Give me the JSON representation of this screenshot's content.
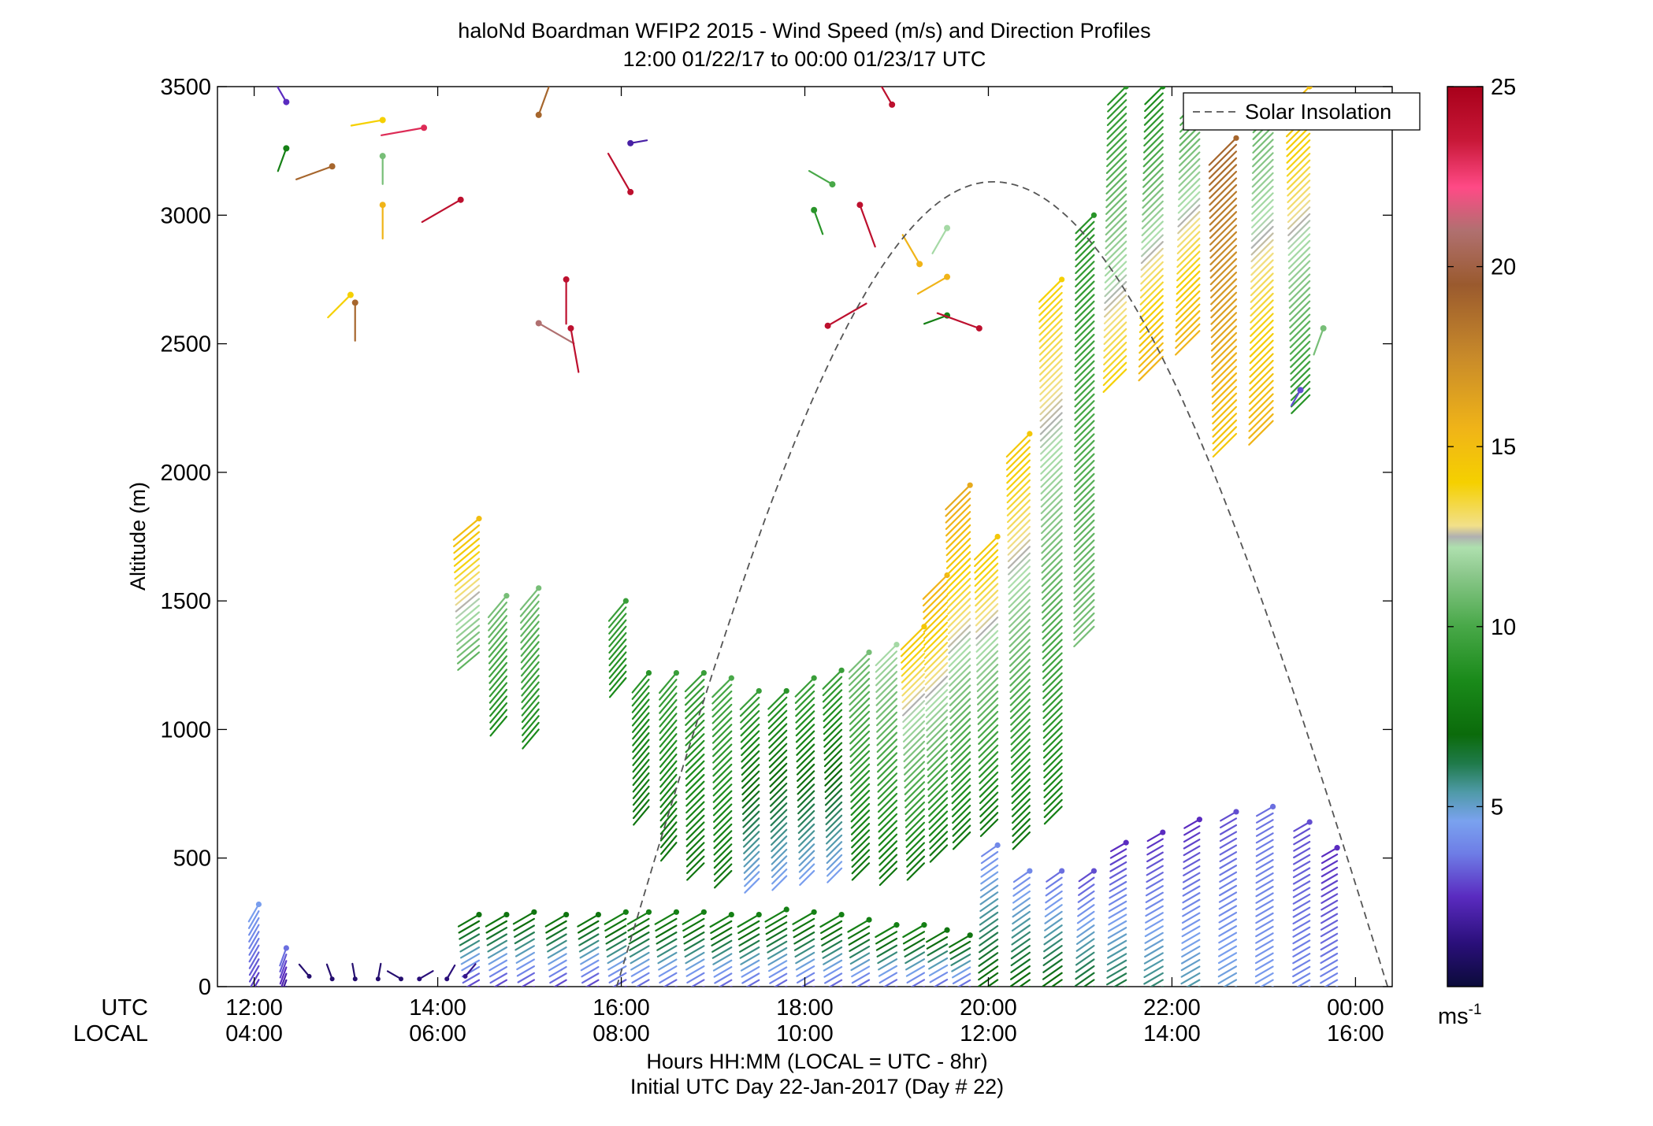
{
  "chart_data": {
    "type": "scatter",
    "title": "haloNd Boardman WFIP2 2015 - Wind Speed (m/s) and Direction Profiles",
    "subtitle": "12:00 01/22/17 to 00:00 01/23/17  UTC",
    "ylabel": "Altitude (m)",
    "xlabel": "Hours HH:MM  (LOCAL = UTC - 8hr)",
    "xlabel2": "Initial UTC Day 22-Jan-2017 (Day # 22)",
    "xrow_label_utc": "UTC",
    "xrow_label_local": "LOCAL",
    "xlim_hours": [
      11.6,
      24.4
    ],
    "ylim": [
      0,
      3500
    ],
    "y_ticks": [
      "0",
      "500",
      "1000",
      "1500",
      "2000",
      "2500",
      "3000",
      "3500"
    ],
    "y_tick_values": [
      0,
      500,
      1000,
      1500,
      2000,
      2500,
      3000,
      3500
    ],
    "x_tick_hours": [
      12,
      14,
      16,
      18,
      20,
      22,
      24
    ],
    "x_ticks_utc": [
      "12:00",
      "14:00",
      "16:00",
      "18:00",
      "20:00",
      "22:00",
      "00:00"
    ],
    "x_ticks_local": [
      "04:00",
      "06:00",
      "08:00",
      "10:00",
      "12:00",
      "14:00",
      "16:00"
    ],
    "legend": {
      "entry": "Solar Insolation",
      "placement": "top-right",
      "style": "dashed gray line"
    },
    "solar_insolation": {
      "start_hour": 15.95,
      "peak_hour": 20.05,
      "end_hour": 24.35,
      "peak_altitude": 3130
    },
    "colorbar": {
      "unit": "ms-1",
      "ticks": [
        "5",
        "10",
        "15",
        "20",
        "25"
      ],
      "tick_values": [
        5,
        10,
        15,
        20,
        25
      ],
      "range": [
        0,
        25
      ],
      "stops": [
        {
          "v": 0,
          "c": "#0b0b3a"
        },
        {
          "v": 1.2,
          "c": "#2a0f7a"
        },
        {
          "v": 2.5,
          "c": "#5a2bc0"
        },
        {
          "v": 3.7,
          "c": "#6e7de6"
        },
        {
          "v": 4.6,
          "c": "#7aa2ef"
        },
        {
          "v": 5.4,
          "c": "#4f9aa8"
        },
        {
          "v": 6.2,
          "c": "#1f7a4a"
        },
        {
          "v": 7.0,
          "c": "#0b6b0b"
        },
        {
          "v": 8.5,
          "c": "#1a8a1a"
        },
        {
          "v": 10.0,
          "c": "#48a848"
        },
        {
          "v": 11.5,
          "c": "#8ec98e"
        },
        {
          "v": 12.2,
          "c": "#aee0ae"
        },
        {
          "v": 12.5,
          "c": "#b0b0b0"
        },
        {
          "v": 12.8,
          "c": "#f2e08a"
        },
        {
          "v": 14.0,
          "c": "#f5d000"
        },
        {
          "v": 15.5,
          "c": "#f0b418"
        },
        {
          "v": 17.5,
          "c": "#c88a2a"
        },
        {
          "v": 19.5,
          "c": "#9a5a2e"
        },
        {
          "v": 21.0,
          "c": "#b07070"
        },
        {
          "v": 22.2,
          "c": "#ff4a86"
        },
        {
          "v": 23.5,
          "c": "#c81838"
        },
        {
          "v": 25.0,
          "c": "#a8001a"
        }
      ]
    },
    "profiles": [
      {
        "t": 12.05,
        "bottom": 0,
        "top": 320,
        "speed_bottom": 2.5,
        "speed_top": 4.5,
        "dir": 210
      },
      {
        "t": 12.35,
        "bottom": 0,
        "top": 150,
        "speed_bottom": 1.5,
        "speed_top": 3.5,
        "dir": 200
      },
      {
        "t": 14.45,
        "bottom": 0,
        "top": 280,
        "speed_bottom": 2.5,
        "speed_top": 7.5,
        "dir": 240
      },
      {
        "t": 14.45,
        "bottom": 1300,
        "top": 1820,
        "speed_bottom": 10.5,
        "speed_top": 15.0,
        "dir": 230
      },
      {
        "t": 14.75,
        "bottom": 0,
        "top": 280,
        "speed_bottom": 2.5,
        "speed_top": 7.5,
        "dir": 240
      },
      {
        "t": 14.75,
        "bottom": 1050,
        "top": 1520,
        "speed_bottom": 8.5,
        "speed_top": 11.0,
        "dir": 220
      },
      {
        "t": 15.05,
        "bottom": 0,
        "top": 290,
        "speed_bottom": 2.5,
        "speed_top": 7.5,
        "dir": 240
      },
      {
        "t": 15.1,
        "bottom": 1000,
        "top": 1550,
        "speed_bottom": 8.5,
        "speed_top": 11.0,
        "dir": 220
      },
      {
        "t": 15.4,
        "bottom": 0,
        "top": 280,
        "speed_bottom": 2.5,
        "speed_top": 7.5,
        "dir": 240
      },
      {
        "t": 15.75,
        "bottom": 0,
        "top": 280,
        "speed_bottom": 2.5,
        "speed_top": 7.5,
        "dir": 240
      },
      {
        "t": 16.05,
        "bottom": 0,
        "top": 290,
        "speed_bottom": 2.8,
        "speed_top": 8.0,
        "dir": 240
      },
      {
        "t": 16.05,
        "bottom": 1200,
        "top": 1500,
        "speed_bottom": 8.5,
        "speed_top": 9.5,
        "dir": 220
      },
      {
        "t": 16.3,
        "bottom": 0,
        "top": 290,
        "speed_bottom": 3.0,
        "speed_top": 8.0,
        "dir": 240
      },
      {
        "t": 16.3,
        "bottom": 700,
        "top": 1220,
        "speed_bottom": 7.5,
        "speed_top": 9.0,
        "dir": 220
      },
      {
        "t": 16.6,
        "bottom": 0,
        "top": 290,
        "speed_bottom": 3.0,
        "speed_top": 8.0,
        "dir": 240
      },
      {
        "t": 16.6,
        "bottom": 560,
        "top": 1220,
        "speed_bottom": 7.5,
        "speed_top": 9.5,
        "dir": 220
      },
      {
        "t": 16.9,
        "bottom": 0,
        "top": 290,
        "speed_bottom": 3.0,
        "speed_top": 8.0,
        "dir": 240
      },
      {
        "t": 16.9,
        "bottom": 480,
        "top": 1220,
        "speed_bottom": 7.5,
        "speed_top": 9.5,
        "dir": 225
      },
      {
        "t": 17.2,
        "bottom": 0,
        "top": 280,
        "speed_bottom": 3.0,
        "speed_top": 8.0,
        "dir": 240
      },
      {
        "t": 17.2,
        "bottom": 450,
        "top": 1200,
        "speed_bottom": 7.5,
        "speed_top": 10.0,
        "dir": 225
      },
      {
        "t": 17.5,
        "bottom": 0,
        "top": 280,
        "speed_bottom": 3.0,
        "speed_top": 8.0,
        "dir": 240
      },
      {
        "t": 17.5,
        "bottom": 420,
        "top": 1150,
        "speed_bottom": 4.5,
        "speed_top": 9.5,
        "dir": 225
      },
      {
        "t": 17.8,
        "bottom": 0,
        "top": 300,
        "speed_bottom": 3.0,
        "speed_top": 8.0,
        "dir": 240
      },
      {
        "t": 17.8,
        "bottom": 430,
        "top": 1150,
        "speed_bottom": 4.5,
        "speed_top": 9.0,
        "dir": 225
      },
      {
        "t": 18.1,
        "bottom": 0,
        "top": 290,
        "speed_bottom": 3.0,
        "speed_top": 8.0,
        "dir": 240
      },
      {
        "t": 18.1,
        "bottom": 450,
        "top": 1200,
        "speed_bottom": 4.5,
        "speed_top": 9.5,
        "dir": 225
      },
      {
        "t": 18.4,
        "bottom": 0,
        "top": 280,
        "speed_bottom": 3.0,
        "speed_top": 8.0,
        "dir": 240
      },
      {
        "t": 18.4,
        "bottom": 460,
        "top": 1230,
        "speed_bottom": 4.5,
        "speed_top": 9.5,
        "dir": 225
      },
      {
        "t": 18.7,
        "bottom": 0,
        "top": 260,
        "speed_bottom": 3.0,
        "speed_top": 8.0,
        "dir": 240
      },
      {
        "t": 18.7,
        "bottom": 480,
        "top": 1300,
        "speed_bottom": 7.5,
        "speed_top": 11.0,
        "dir": 225
      },
      {
        "t": 19.0,
        "bottom": 0,
        "top": 240,
        "speed_bottom": 3.0,
        "speed_top": 8.0,
        "dir": 240
      },
      {
        "t": 19.0,
        "bottom": 460,
        "top": 1330,
        "speed_bottom": 7.5,
        "speed_top": 12.0,
        "dir": 225
      },
      {
        "t": 19.3,
        "bottom": 0,
        "top": 240,
        "speed_bottom": 3.0,
        "speed_top": 8.0,
        "dir": 240
      },
      {
        "t": 19.3,
        "bottom": 480,
        "top": 1400,
        "speed_bottom": 7.5,
        "speed_top": 14.5,
        "dir": 225
      },
      {
        "t": 19.55,
        "bottom": 0,
        "top": 220,
        "speed_bottom": 3.0,
        "speed_top": 7.5,
        "dir": 240
      },
      {
        "t": 19.55,
        "bottom": 550,
        "top": 1600,
        "speed_bottom": 7.5,
        "speed_top": 15.5,
        "dir": 225
      },
      {
        "t": 19.8,
        "bottom": 0,
        "top": 200,
        "speed_bottom": 3.0,
        "speed_top": 7.5,
        "dir": 240
      },
      {
        "t": 19.8,
        "bottom": 600,
        "top": 1950,
        "speed_bottom": 7.5,
        "speed_top": 16.0,
        "dir": 225
      },
      {
        "t": 20.1,
        "bottom": 0,
        "top": 550,
        "speed_bottom": 7.5,
        "speed_top": 4.0,
        "dir": 235
      },
      {
        "t": 20.1,
        "bottom": 650,
        "top": 1750,
        "speed_bottom": 7.5,
        "speed_top": 14.5,
        "dir": 225
      },
      {
        "t": 20.45,
        "bottom": 0,
        "top": 450,
        "speed_bottom": 7.5,
        "speed_top": 4.0,
        "dir": 235
      },
      {
        "t": 20.45,
        "bottom": 600,
        "top": 2150,
        "speed_bottom": 7.5,
        "speed_top": 14.5,
        "dir": 225
      },
      {
        "t": 20.8,
        "bottom": 0,
        "top": 450,
        "speed_bottom": 7.5,
        "speed_top": 3.5,
        "dir": 235
      },
      {
        "t": 20.8,
        "bottom": 700,
        "top": 2750,
        "speed_bottom": 8.0,
        "speed_top": 14.0,
        "dir": 225
      },
      {
        "t": 21.15,
        "bottom": 0,
        "top": 450,
        "speed_bottom": 7.0,
        "speed_top": 3.0,
        "dir": 235
      },
      {
        "t": 21.15,
        "bottom": 1400,
        "top": 3000,
        "speed_bottom": 11.0,
        "speed_top": 9.0,
        "dir": 225
      },
      {
        "t": 21.5,
        "bottom": 0,
        "top": 560,
        "speed_bottom": 6.5,
        "speed_top": 2.5,
        "dir": 240
      },
      {
        "t": 21.5,
        "bottom": 2400,
        "top": 3500,
        "speed_bottom": 14.0,
        "speed_top": 9.0,
        "dir": 225
      },
      {
        "t": 21.9,
        "bottom": 0,
        "top": 600,
        "speed_bottom": 6.0,
        "speed_top": 2.5,
        "dir": 240
      },
      {
        "t": 21.9,
        "bottom": 2450,
        "top": 3500,
        "speed_bottom": 15.5,
        "speed_top": 8.5,
        "dir": 225
      },
      {
        "t": 22.3,
        "bottom": 0,
        "top": 650,
        "speed_bottom": 5.5,
        "speed_top": 2.5,
        "dir": 240
      },
      {
        "t": 22.3,
        "bottom": 2550,
        "top": 3450,
        "speed_bottom": 15.5,
        "speed_top": 10.0,
        "dir": 225
      },
      {
        "t": 22.7,
        "bottom": 0,
        "top": 680,
        "speed_bottom": 5.0,
        "speed_top": 3.0,
        "dir": 240
      },
      {
        "t": 22.7,
        "bottom": 2150,
        "top": 3300,
        "speed_bottom": 14.5,
        "speed_top": 19.0,
        "dir": 225
      },
      {
        "t": 23.1,
        "bottom": 0,
        "top": 700,
        "speed_bottom": 4.5,
        "speed_top": 3.5,
        "dir": 240
      },
      {
        "t": 23.1,
        "bottom": 2200,
        "top": 3450,
        "speed_bottom": 15.5,
        "speed_top": 10.5,
        "dir": 225
      },
      {
        "t": 23.5,
        "bottom": 0,
        "top": 640,
        "speed_bottom": 4.0,
        "speed_top": 3.0,
        "dir": 240
      },
      {
        "t": 23.5,
        "bottom": 2300,
        "top": 3500,
        "speed_bottom": 9.0,
        "speed_top": 15.0,
        "dir": 225
      },
      {
        "t": 23.8,
        "bottom": 0,
        "top": 540,
        "speed_bottom": 4.0,
        "speed_top": 2.5,
        "dir": 240
      }
    ],
    "scattered_barbs": [
      {
        "t": 12.35,
        "alt": 3440,
        "speed": 2.5,
        "dir": 330
      },
      {
        "t": 12.35,
        "alt": 3260,
        "speed": 8.0,
        "dir": 200
      },
      {
        "t": 12.85,
        "alt": 3190,
        "speed": 19.0,
        "dir": 250
      },
      {
        "t": 13.4,
        "alt": 3370,
        "speed": 14.0,
        "dir": 260
      },
      {
        "t": 13.85,
        "alt": 3340,
        "speed": 23.0,
        "dir": 260
      },
      {
        "t": 13.4,
        "alt": 3230,
        "speed": 11.0,
        "dir": 180
      },
      {
        "t": 13.4,
        "alt": 3040,
        "speed": 15.5,
        "dir": 180
      },
      {
        "t": 13.1,
        "alt": 2660,
        "speed": 19.0,
        "dir": 180
      },
      {
        "t": 13.05,
        "alt": 2690,
        "speed": 14.0,
        "dir": 225
      },
      {
        "t": 14.25,
        "alt": 3060,
        "speed": 24.0,
        "dir": 240
      },
      {
        "t": 15.1,
        "alt": 3390,
        "speed": 19.0,
        "dir": 20
      },
      {
        "t": 16.1,
        "alt": 3280,
        "speed": 2.0,
        "dir": 80
      },
      {
        "t": 16.1,
        "alt": 3090,
        "speed": 24.0,
        "dir": 330
      },
      {
        "t": 15.4,
        "alt": 2750,
        "speed": 24.0,
        "dir": 180
      },
      {
        "t": 15.1,
        "alt": 2580,
        "speed": 21.0,
        "dir": 120
      },
      {
        "t": 15.45,
        "alt": 2560,
        "speed": 24.0,
        "dir": 170
      },
      {
        "t": 18.95,
        "alt": 3430,
        "speed": 24.0,
        "dir": 330
      },
      {
        "t": 18.6,
        "alt": 3040,
        "speed": 24.0,
        "dir": 160
      },
      {
        "t": 18.1,
        "alt": 3020,
        "speed": 9.0,
        "dir": 160
      },
      {
        "t": 18.3,
        "alt": 3120,
        "speed": 10.0,
        "dir": 300
      },
      {
        "t": 19.55,
        "alt": 2950,
        "speed": 12.0,
        "dir": 210
      },
      {
        "t": 19.25,
        "alt": 2810,
        "speed": 15.5,
        "dir": 330
      },
      {
        "t": 19.55,
        "alt": 2760,
        "speed": 15.5,
        "dir": 240
      },
      {
        "t": 19.55,
        "alt": 2610,
        "speed": 8.0,
        "dir": 250
      },
      {
        "t": 19.9,
        "alt": 2560,
        "speed": 24.0,
        "dir": 290
      },
      {
        "t": 18.25,
        "alt": 2570,
        "speed": 24.0,
        "dir": 60
      },
      {
        "t": 23.65,
        "alt": 2560,
        "speed": 11.0,
        "dir": 200
      },
      {
        "t": 23.4,
        "alt": 2320,
        "speed": 3.0,
        "dir": 210
      }
    ],
    "surface_barbs": [
      {
        "t": 12.6,
        "alt": 40,
        "speed": 1.0,
        "dir": 320
      },
      {
        "t": 12.85,
        "alt": 30,
        "speed": 1.0,
        "dir": 340
      },
      {
        "t": 13.1,
        "alt": 30,
        "speed": 1.0,
        "dir": 350
      },
      {
        "t": 13.35,
        "alt": 30,
        "speed": 1.0,
        "dir": 10
      },
      {
        "t": 13.6,
        "alt": 30,
        "speed": 1.0,
        "dir": 300
      },
      {
        "t": 13.8,
        "alt": 30,
        "speed": 1.2,
        "dir": 60
      },
      {
        "t": 14.1,
        "alt": 30,
        "speed": 1.2,
        "dir": 30
      },
      {
        "t": 14.3,
        "alt": 40,
        "speed": 1.5,
        "dir": 40
      }
    ]
  }
}
